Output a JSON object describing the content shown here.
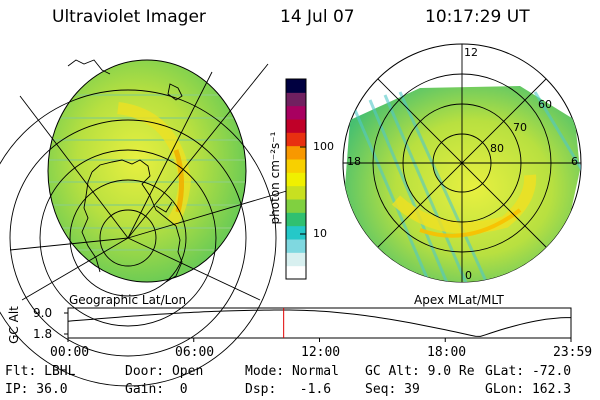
{
  "header": {
    "title": "Ultraviolet Imager",
    "date": "14 Jul 07",
    "time": "10:17:29 UT"
  },
  "panels": {
    "left_label": "Geographic Lat/Lon",
    "right_label": "Apex MLat/MLT",
    "right_polar_labels": {
      "mlt_12": "12",
      "mlt_18": "18",
      "mlt_6": "6",
      "mlt_0": "0",
      "lat_60": "60",
      "lat_70": "70",
      "lat_80": "80"
    }
  },
  "colorbar": {
    "unit_label": "photon cm⁻²s⁻¹",
    "tick_100": "100",
    "tick_10": "10",
    "colors": [
      "#ffffff",
      "#d8f0f0",
      "#7fd8e0",
      "#25c8c8",
      "#30c070",
      "#80d040",
      "#c8e020",
      "#f0f000",
      "#f8d000",
      "#f89800",
      "#e83010",
      "#c00028",
      "#a80060",
      "#702060",
      "#000040"
    ]
  },
  "timeline": {
    "axis_label": "GC Alt",
    "y_top": "9.0",
    "y_bottom": "1.8",
    "ticks": [
      "00:00",
      "06:00",
      "12:00",
      "18:00",
      "23:59"
    ],
    "marker_time_hours": 10.29,
    "marker_color": "#e00000"
  },
  "info": {
    "flt": "Flt: LBHL",
    "ip": "IP: 36.0",
    "door": "Door: Open",
    "gain": "Gain:  0",
    "mode": "Mode: Normal",
    "dsp": "Dsp:   -1.6",
    "gcalt": "GC Alt: 9.0 Re",
    "seq": "Seq: 39",
    "glat": "GLat: -72.0",
    "glon": "GLon: 162.3"
  }
}
